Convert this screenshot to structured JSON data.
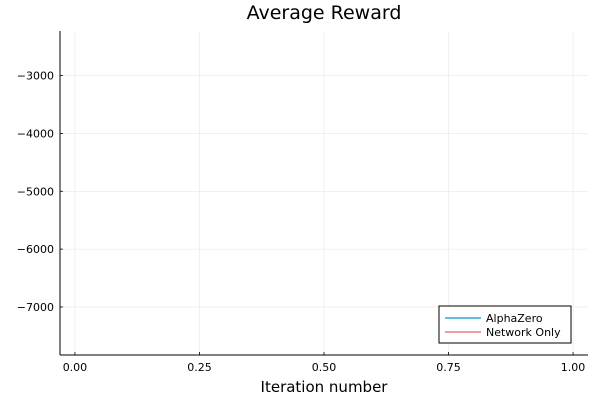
{
  "chart_data": {
    "type": "line",
    "title": "Average Reward",
    "xlabel": "Iteration number",
    "ylabel": "",
    "xlim": [
      -0.03,
      1.03
    ],
    "ylim": [
      -7830,
      -2230
    ],
    "xticks": [
      0.0,
      0.25,
      0.5,
      0.75,
      1.0
    ],
    "xtick_labels": [
      "0.00",
      "0.25",
      "0.50",
      "0.75",
      "1.00"
    ],
    "yticks": [
      -3000,
      -4000,
      -5000,
      -6000,
      -7000
    ],
    "ytick_labels": [
      "−3000",
      "−4000",
      "−5000",
      "−6000",
      "−7000"
    ],
    "grid": true,
    "legend_position": "bottom-right",
    "series": [
      {
        "name": "AlphaZero",
        "color": "#6cb8e6",
        "x": [],
        "y": []
      },
      {
        "name": "Network Only",
        "color": "#e8a09a",
        "x": [],
        "y": []
      }
    ]
  }
}
